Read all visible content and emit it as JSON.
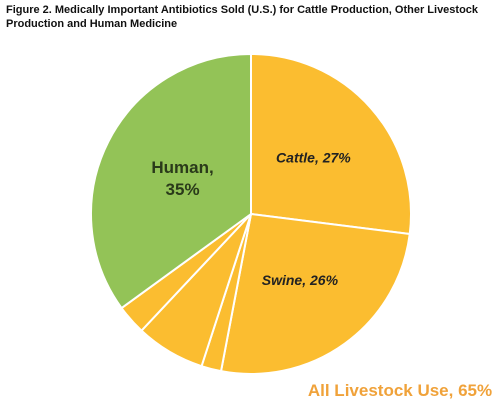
{
  "chart_data": {
    "type": "pie",
    "title": "Figure 2. Medically Important Antibiotics Sold (U.S.) for Cattle Production, Other Livestock Production and Human Medicine",
    "categories": [
      "Cattle",
      "Swine",
      null,
      null,
      null,
      "Human"
    ],
    "values": [
      27,
      26,
      2,
      7,
      3,
      35
    ],
    "value_labels": [
      "Cattle, 27%",
      "Swine, 26%",
      null,
      null,
      null,
      "Human, 35%"
    ],
    "colors": [
      "#fbbd30",
      "#fbbd30",
      "#fbbd30",
      "#fbbd30",
      "#fbbd30",
      "#93c357"
    ],
    "annotation": "All Livestock Use, 65%"
  }
}
